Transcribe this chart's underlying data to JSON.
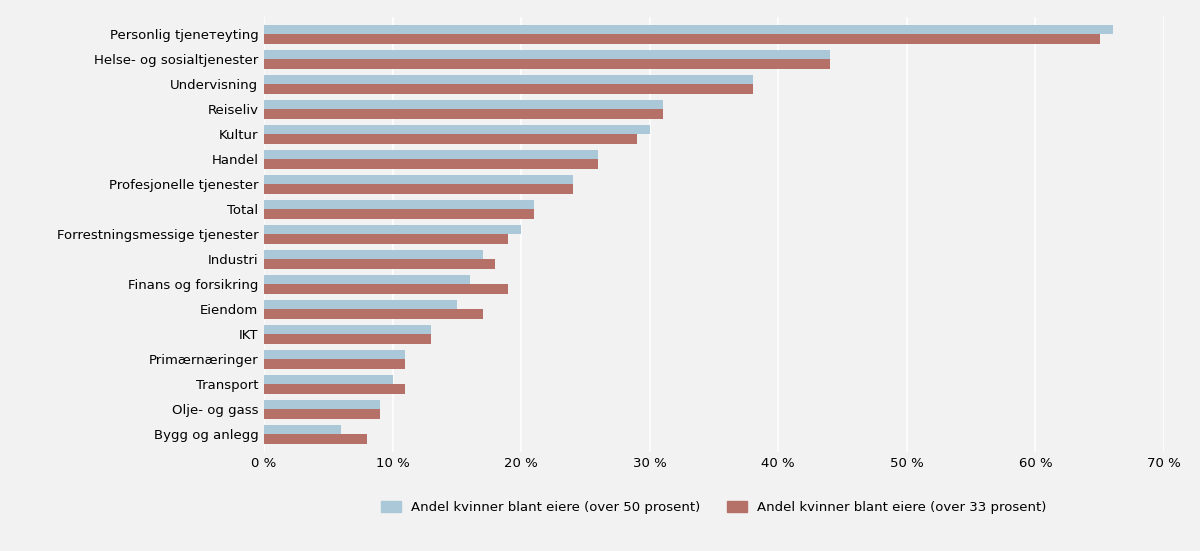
{
  "categories_display": [
    "Personlig tjenетeyting",
    "Helse- og sosialtjenester",
    "Undervisning",
    "Reiseliv",
    "Kultur",
    "Handel",
    "Profesjonelle tjenester",
    "Total",
    "Forrestningsmessige tjenester",
    "Industri",
    "Finans og forsikring",
    "Eiendom",
    "IKT",
    "Primærnæringer",
    "Transport",
    "Olje- og gass",
    "Bygg og anlegg"
  ],
  "values_50": [
    66,
    44,
    38,
    31,
    30,
    26,
    24,
    21,
    20,
    17,
    16,
    15,
    13,
    11,
    10,
    9,
    6
  ],
  "values_33": [
    65,
    44,
    38,
    31,
    29,
    26,
    24,
    21,
    19,
    18,
    19,
    17,
    13,
    11,
    11,
    9,
    8
  ],
  "color_50": "#abc8d8",
  "color_33": "#b57068",
  "legend_50": "Andel kvinner blant eiere (over 50 prosent)",
  "legend_33": "Andel kvinner blant eiere (over 33 prosent)",
  "xlim": [
    0,
    70
  ],
  "xticks": [
    0,
    10,
    20,
    30,
    40,
    50,
    60,
    70
  ],
  "xtick_labels": [
    "0 %",
    "10 %",
    "20 %",
    "30 %",
    "40 %",
    "50 %",
    "60 %",
    "70 %"
  ],
  "background_color": "#f2f2f2",
  "grid_color": "#ffffff"
}
